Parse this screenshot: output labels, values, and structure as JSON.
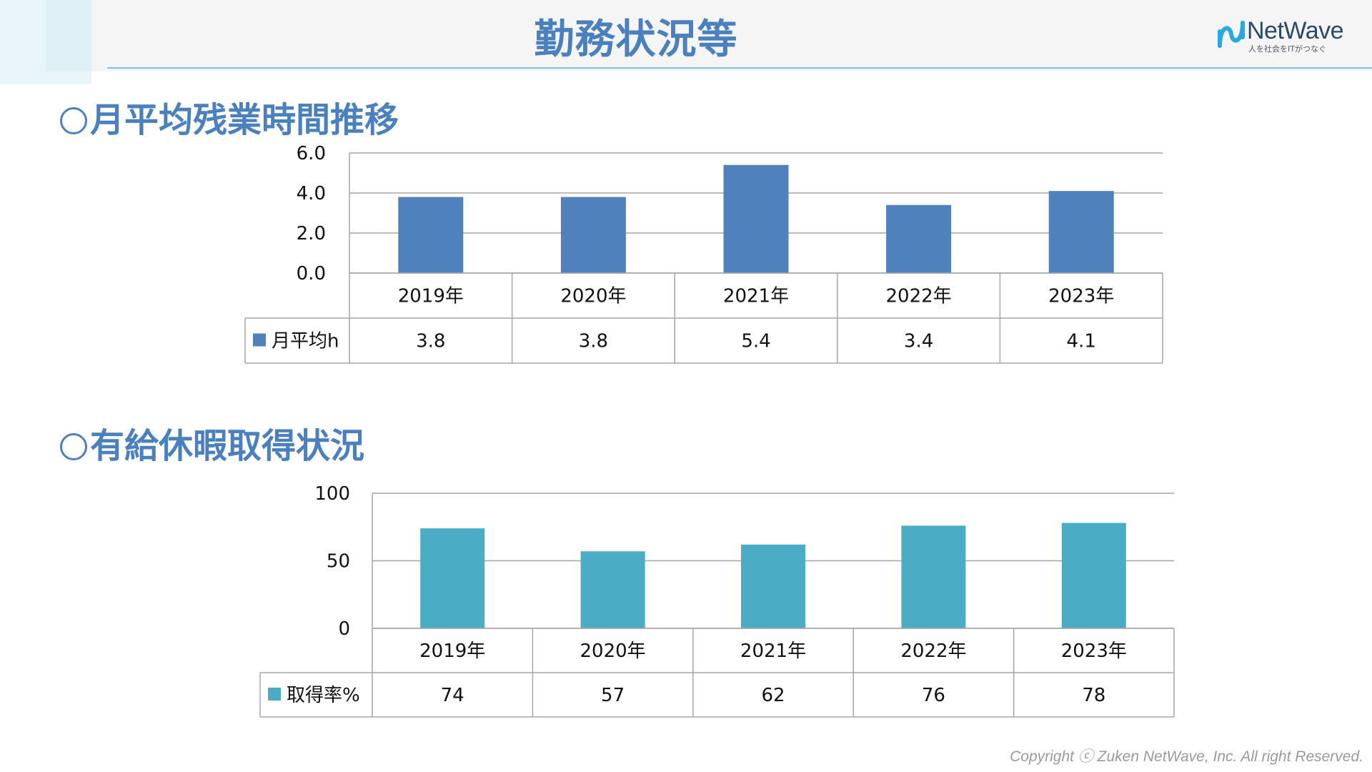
{
  "header": {
    "title": "勤務状況等",
    "logo_text": "NetWave",
    "logo_tagline": "人を社会をITがつなぐ"
  },
  "sections": {
    "overtime_title": "月平均残業時間推移",
    "leave_title": "有給休暇取得状況"
  },
  "colors": {
    "title_blue": "#4a80be",
    "bar_overtime": "#4f81bd",
    "bar_leave": "#4bacc6",
    "grid": "#a6a6a6"
  },
  "chart_data": [
    {
      "type": "bar",
      "categories": [
        "2019年",
        "2020年",
        "2021年",
        "2022年",
        "2023年"
      ],
      "series": [
        {
          "name": "月平均h",
          "values": [
            3.8,
            3.8,
            5.4,
            3.4,
            4.1
          ]
        }
      ],
      "value_labels": [
        "3.8",
        "3.8",
        "5.4",
        "3.4",
        "4.1"
      ],
      "ylim": [
        0,
        6
      ],
      "yticks": [
        "0.0",
        "2.0",
        "4.0",
        "6.0"
      ],
      "ytick_values": [
        0,
        2,
        4,
        6
      ],
      "grid": true,
      "legend": "data-table",
      "color": "#4f81bd"
    },
    {
      "type": "bar",
      "categories": [
        "2019年",
        "2020年",
        "2021年",
        "2022年",
        "2023年"
      ],
      "series": [
        {
          "name": "取得率%",
          "values": [
            74,
            57,
            62,
            76,
            78
          ]
        }
      ],
      "value_labels": [
        "74",
        "57",
        "62",
        "76",
        "78"
      ],
      "ylim": [
        0,
        100
      ],
      "yticks": [
        "0",
        "50",
        "100"
      ],
      "ytick_values": [
        0,
        50,
        100
      ],
      "grid": true,
      "legend": "data-table",
      "color": "#4bacc6"
    }
  ],
  "footer": {
    "copyright": "Copyright ⓒ  Zuken NetWave, Inc. All right Reserved."
  }
}
